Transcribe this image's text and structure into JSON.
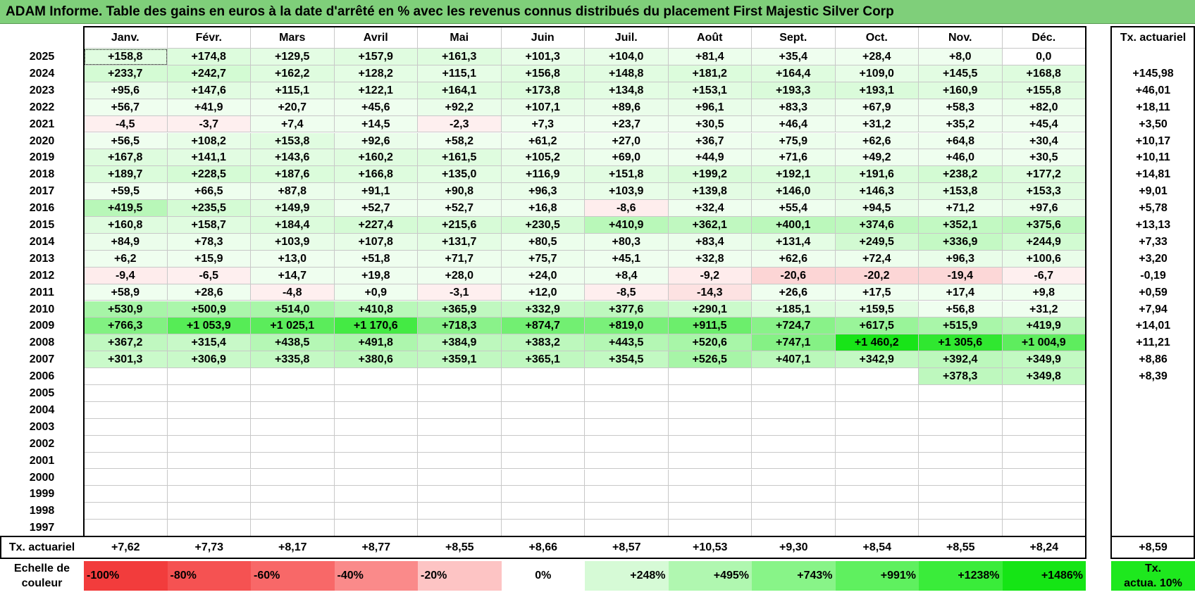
{
  "title": "ADAM Informe. Table des gains en euros à la date d'arrêté en % avec les revenus connus distribués du placement First Majestic Silver Corp",
  "months": [
    "Janv.",
    "Févr.",
    "Mars",
    "Avril",
    "Mai",
    "Juin",
    "Juil.",
    "Août",
    "Sept.",
    "Oct.",
    "Nov.",
    "Déc."
  ],
  "annual_header": "Tx. actuariel",
  "rows": [
    {
      "year": "2025",
      "values": [
        "+158,8",
        "+174,8",
        "+129,5",
        "+157,9",
        "+161,3",
        "+101,3",
        "+104,0",
        "+81,4",
        "+35,4",
        "+28,4",
        "+8,0",
        "0,0"
      ],
      "rate": ""
    },
    {
      "year": "2024",
      "values": [
        "+233,7",
        "+242,7",
        "+162,2",
        "+128,2",
        "+115,1",
        "+156,8",
        "+148,8",
        "+181,2",
        "+164,4",
        "+109,0",
        "+145,5",
        "+168,8"
      ],
      "rate": "+145,98"
    },
    {
      "year": "2023",
      "values": [
        "+95,6",
        "+147,6",
        "+115,1",
        "+122,1",
        "+164,1",
        "+173,8",
        "+134,8",
        "+153,1",
        "+193,3",
        "+193,1",
        "+160,9",
        "+155,8"
      ],
      "rate": "+46,01"
    },
    {
      "year": "2022",
      "values": [
        "+56,7",
        "+41,9",
        "+20,7",
        "+45,6",
        "+92,2",
        "+107,1",
        "+89,6",
        "+96,1",
        "+83,3",
        "+67,9",
        "+58,3",
        "+82,0"
      ],
      "rate": "+18,11"
    },
    {
      "year": "2021",
      "values": [
        "-4,5",
        "-3,7",
        "+7,4",
        "+14,5",
        "-2,3",
        "+7,3",
        "+23,7",
        "+30,5",
        "+46,4",
        "+31,2",
        "+35,2",
        "+45,4"
      ],
      "rate": "+3,50"
    },
    {
      "year": "2020",
      "values": [
        "+56,5",
        "+108,2",
        "+153,8",
        "+92,6",
        "+58,2",
        "+61,2",
        "+27,0",
        "+36,7",
        "+75,9",
        "+62,6",
        "+64,8",
        "+30,4"
      ],
      "rate": "+10,17"
    },
    {
      "year": "2019",
      "values": [
        "+167,8",
        "+141,1",
        "+143,6",
        "+160,2",
        "+161,5",
        "+105,2",
        "+69,0",
        "+44,9",
        "+71,6",
        "+49,2",
        "+46,0",
        "+30,5"
      ],
      "rate": "+10,11"
    },
    {
      "year": "2018",
      "values": [
        "+189,7",
        "+228,5",
        "+187,6",
        "+166,8",
        "+135,0",
        "+116,9",
        "+151,8",
        "+199,2",
        "+192,1",
        "+191,6",
        "+238,2",
        "+177,2"
      ],
      "rate": "+14,81"
    },
    {
      "year": "2017",
      "values": [
        "+59,5",
        "+66,5",
        "+87,8",
        "+91,1",
        "+90,8",
        "+96,3",
        "+103,9",
        "+139,8",
        "+146,0",
        "+146,3",
        "+153,8",
        "+153,3"
      ],
      "rate": "+9,01"
    },
    {
      "year": "2016",
      "values": [
        "+419,5",
        "+235,5",
        "+149,9",
        "+52,7",
        "+52,7",
        "+16,8",
        "-8,6",
        "+32,4",
        "+55,4",
        "+94,5",
        "+71,2",
        "+97,6"
      ],
      "rate": "+5,78"
    },
    {
      "year": "2015",
      "values": [
        "+160,8",
        "+158,7",
        "+184,4",
        "+227,4",
        "+215,6",
        "+230,5",
        "+410,9",
        "+362,1",
        "+400,1",
        "+374,6",
        "+352,1",
        "+375,6"
      ],
      "rate": "+13,13"
    },
    {
      "year": "2014",
      "values": [
        "+84,9",
        "+78,3",
        "+103,9",
        "+107,8",
        "+131,7",
        "+80,5",
        "+80,3",
        "+83,4",
        "+131,4",
        "+249,5",
        "+336,9",
        "+244,9"
      ],
      "rate": "+7,33"
    },
    {
      "year": "2013",
      "values": [
        "+6,2",
        "+15,9",
        "+13,0",
        "+51,8",
        "+71,7",
        "+75,7",
        "+45,1",
        "+32,8",
        "+62,6",
        "+72,4",
        "+96,3",
        "+100,6"
      ],
      "rate": "+3,20"
    },
    {
      "year": "2012",
      "values": [
        "-9,4",
        "-6,5",
        "+14,7",
        "+19,8",
        "+28,0",
        "+24,0",
        "+8,4",
        "-9,2",
        "-20,6",
        "-20,2",
        "-19,4",
        "-6,7"
      ],
      "rate": "-0,19"
    },
    {
      "year": "2011",
      "values": [
        "+58,9",
        "+28,6",
        "-4,8",
        "+0,9",
        "-3,1",
        "+12,0",
        "-8,5",
        "-14,3",
        "+26,6",
        "+17,5",
        "+17,4",
        "+9,8"
      ],
      "rate": "+0,59"
    },
    {
      "year": "2010",
      "values": [
        "+530,9",
        "+500,9",
        "+514,0",
        "+410,8",
        "+365,9",
        "+332,9",
        "+377,6",
        "+290,1",
        "+185,1",
        "+159,5",
        "+56,8",
        "+31,2"
      ],
      "rate": "+7,94"
    },
    {
      "year": "2009",
      "values": [
        "+766,3",
        "+1 053,9",
        "+1 025,1",
        "+1 170,6",
        "+718,3",
        "+874,7",
        "+819,0",
        "+911,5",
        "+724,7",
        "+617,5",
        "+515,9",
        "+419,9"
      ],
      "rate": "+14,01"
    },
    {
      "year": "2008",
      "values": [
        "+367,2",
        "+315,4",
        "+438,5",
        "+491,8",
        "+384,9",
        "+383,2",
        "+443,5",
        "+520,6",
        "+747,1",
        "+1 460,2",
        "+1 305,6",
        "+1 004,9"
      ],
      "rate": "+11,21"
    },
    {
      "year": "2007",
      "values": [
        "+301,3",
        "+306,9",
        "+335,8",
        "+380,6",
        "+359,1",
        "+365,1",
        "+354,5",
        "+526,5",
        "+407,1",
        "+342,9",
        "+392,4",
        "+349,9"
      ],
      "rate": "+8,86"
    },
    {
      "year": "2006",
      "values": [
        "",
        "",
        "",
        "",
        "",
        "",
        "",
        "",
        "",
        "",
        "+378,3",
        "+349,8"
      ],
      "rate": "+8,39"
    },
    {
      "year": "2005",
      "values": [
        "",
        "",
        "",
        "",
        "",
        "",
        "",
        "",
        "",
        "",
        "",
        ""
      ],
      "rate": ""
    },
    {
      "year": "2004",
      "values": [
        "",
        "",
        "",
        "",
        "",
        "",
        "",
        "",
        "",
        "",
        "",
        ""
      ],
      "rate": ""
    },
    {
      "year": "2003",
      "values": [
        "",
        "",
        "",
        "",
        "",
        "",
        "",
        "",
        "",
        "",
        "",
        ""
      ],
      "rate": ""
    },
    {
      "year": "2002",
      "values": [
        "",
        "",
        "",
        "",
        "",
        "",
        "",
        "",
        "",
        "",
        "",
        ""
      ],
      "rate": ""
    },
    {
      "year": "2001",
      "values": [
        "",
        "",
        "",
        "",
        "",
        "",
        "",
        "",
        "",
        "",
        "",
        ""
      ],
      "rate": ""
    },
    {
      "year": "2000",
      "values": [
        "",
        "",
        "",
        "",
        "",
        "",
        "",
        "",
        "",
        "",
        "",
        ""
      ],
      "rate": ""
    },
    {
      "year": "1999",
      "values": [
        "",
        "",
        "",
        "",
        "",
        "",
        "",
        "",
        "",
        "",
        "",
        ""
      ],
      "rate": ""
    },
    {
      "year": "1998",
      "values": [
        "",
        "",
        "",
        "",
        "",
        "",
        "",
        "",
        "",
        "",
        "",
        ""
      ],
      "rate": ""
    },
    {
      "year": "1997",
      "values": [
        "",
        "",
        "",
        "",
        "",
        "",
        "",
        "",
        "",
        "",
        "",
        ""
      ],
      "rate": ""
    }
  ],
  "footer": {
    "label": "Tx. actuariel",
    "values": [
      "+7,62",
      "+7,73",
      "+8,17",
      "+8,77",
      "+8,55",
      "+8,66",
      "+8,57",
      "+10,53",
      "+9,30",
      "+8,54",
      "+8,55",
      "+8,24"
    ],
    "total": "+8,59"
  },
  "scale": {
    "label_line1": "Echelle de",
    "label_line2": "couleur",
    "items": [
      {
        "label": "-100%",
        "color": "#f23c3c",
        "align": "left"
      },
      {
        "label": "-80%",
        "color": "#f55252",
        "align": "left"
      },
      {
        "label": "-60%",
        "color": "#f86868",
        "align": "left"
      },
      {
        "label": "-40%",
        "color": "#fa8a8a",
        "align": "left"
      },
      {
        "label": "-20%",
        "color": "#fdc4c4",
        "align": "left"
      },
      {
        "label": "0%",
        "color": "#ffffff",
        "align": "center"
      },
      {
        "label": "+248%",
        "color": "#d6fad6",
        "align": "right"
      },
      {
        "label": "+495%",
        "color": "#b0f7b0",
        "align": "right"
      },
      {
        "label": "+743%",
        "color": "#88f488",
        "align": "right"
      },
      {
        "label": "+991%",
        "color": "#5ff05f",
        "align": "right"
      },
      {
        "label": "+1238%",
        "color": "#3aec3a",
        "align": "right"
      },
      {
        "label": "+1486%",
        "color": "#15e515",
        "align": "right"
      }
    ],
    "legend_line1": "Tx.",
    "legend_line2": "actua. 10%",
    "legend_color": "#1ee81e"
  }
}
